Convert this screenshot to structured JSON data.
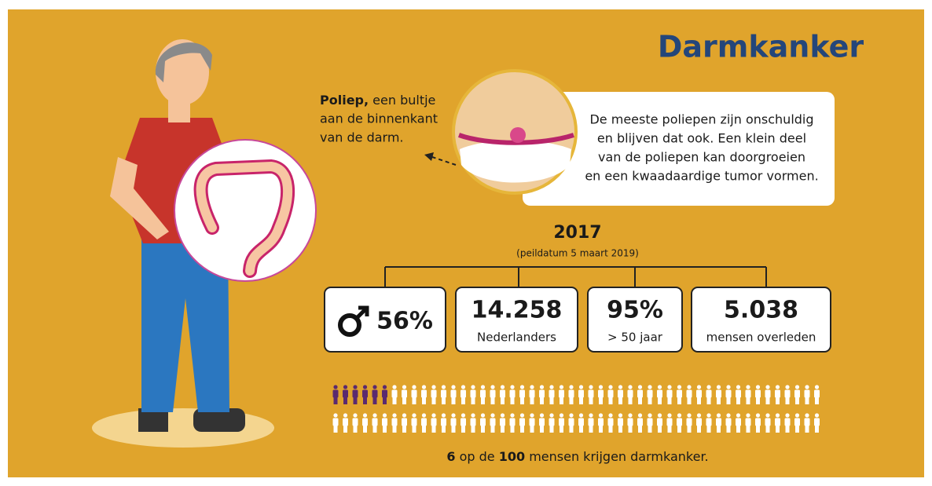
{
  "header": {
    "title": "Darmkanker"
  },
  "polyp_note": {
    "bold": "Poliep,",
    "lines": [
      " een bultje",
      "aan de binnenkant",
      "van de darm."
    ]
  },
  "bubble": {
    "lines": [
      "De meeste poliepen zijn onschuldig",
      "en blijven dat ook. Een klein deel",
      "van de poliepen kan doorgroeien",
      "en een kwaadaardige tumor vormen."
    ]
  },
  "stats": {
    "year": "2017",
    "note": "(peildatum 5 maart 2019)",
    "boxes": [
      {
        "value": "56%"
      },
      {
        "value": "14.258",
        "label": "Nederlanders"
      },
      {
        "value": "95%",
        "label": "> 50 jaar"
      },
      {
        "value": "5.038",
        "label": "mensen overleden"
      }
    ]
  },
  "footer": {
    "count": 6,
    "text1": " op de ",
    "total": 100,
    "text2": " mensen krijgen darmkanker."
  }
}
